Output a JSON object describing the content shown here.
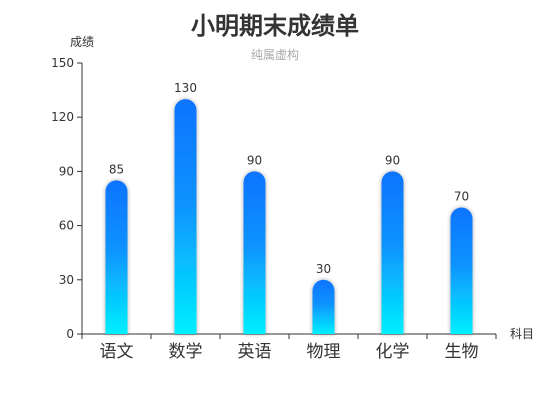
{
  "chart_data": {
    "type": "bar",
    "title": "小明期末成绩单",
    "subtitle": "纯属虚构",
    "xlabel": "科目",
    "ylabel": "成绩",
    "categories": [
      "语文",
      "数学",
      "英语",
      "物理",
      "化学",
      "生物"
    ],
    "values": [
      85,
      130,
      90,
      30,
      90,
      70
    ],
    "ylim": [
      0,
      150
    ],
    "yticks": [
      0,
      30,
      60,
      90,
      120,
      150
    ],
    "grid": false,
    "legend": "none",
    "bar_style": "rounded-top",
    "colors": {
      "bar_top": "#0a74ff",
      "bar_mid": "#0d93ff",
      "bar_bottom": "#00f0ff",
      "axis": "#333333",
      "text": "#333333",
      "subtitle": "#aaaaaa"
    }
  }
}
